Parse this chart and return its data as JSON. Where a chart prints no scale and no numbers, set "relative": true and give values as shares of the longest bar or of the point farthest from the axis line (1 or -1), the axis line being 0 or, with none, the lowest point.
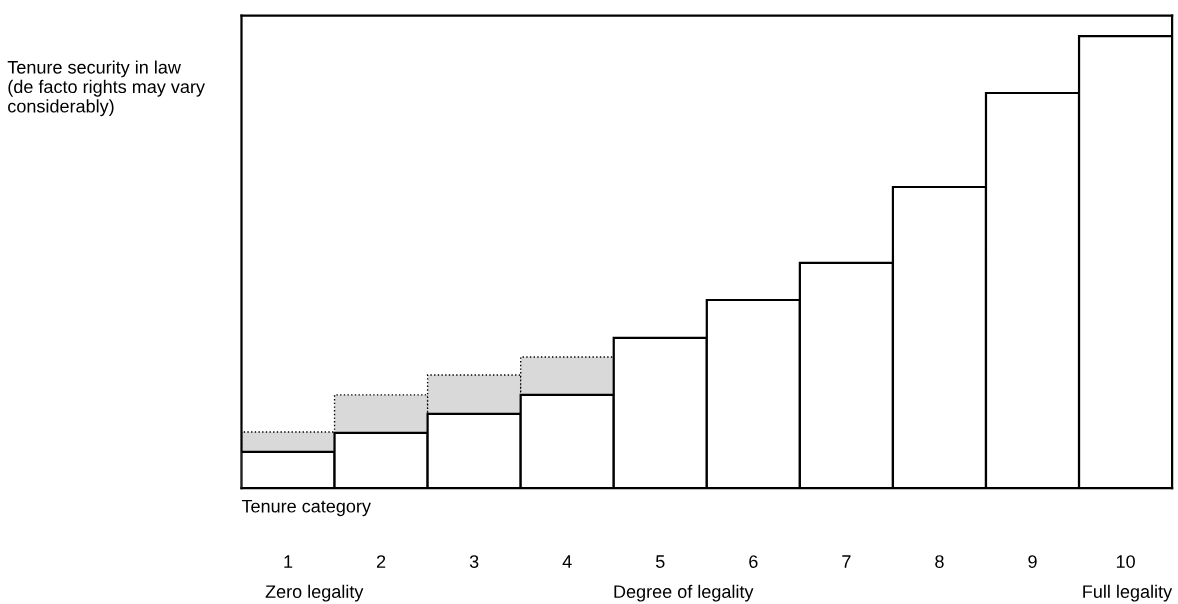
{
  "chart_data": {
    "type": "bar",
    "relative": true,
    "stacked": true,
    "xlabel": "Tenure category",
    "ylabel": "Tenure security in law (de facto rights may vary considerably)",
    "categories": [
      "1",
      "2",
      "3",
      "4",
      "5",
      "6",
      "7",
      "8",
      "9",
      "10"
    ],
    "series": [
      {
        "color": "#ffffff",
        "values": [
          0.08,
          0.122,
          0.164,
          0.206,
          0.332,
          0.416,
          0.498,
          0.666,
          0.874,
          1
        ]
      },
      {
        "color": "#d9d9d9",
        "line_style": "dotted",
        "values": [
          0.044,
          0.084,
          0.086,
          0.084,
          null,
          null,
          null,
          null,
          null,
          null
        ]
      }
    ],
    "annotations": [
      "Zero legality",
      "Degree of legality",
      "Full legality"
    ],
    "legend": false,
    "grid": false
  }
}
